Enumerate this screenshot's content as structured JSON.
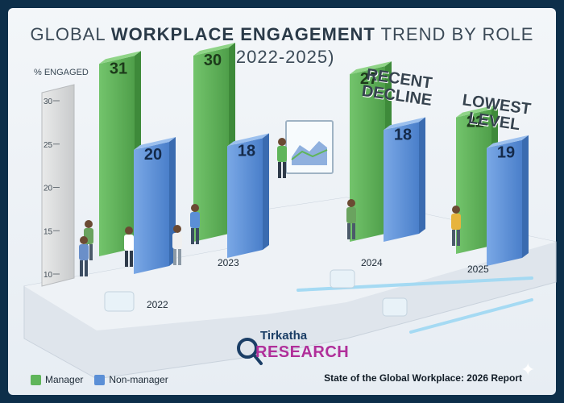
{
  "chart_data": {
    "type": "bar",
    "title_light_1": "GLOBAL ",
    "title_bold": "WORKPLACE ENGAGEMENT",
    "title_light_2": " TREND BY ROLE",
    "title_years": "(2022-2025)",
    "ylabel": "% ENGAGED",
    "yticks": [
      "30",
      "25",
      "20",
      "15",
      "10"
    ],
    "categories": [
      "2022",
      "2023",
      "2024",
      "2025"
    ],
    "series": [
      {
        "name": "Manager",
        "color": "#5fb55a",
        "values": [
          31,
          30,
          27,
          22
        ]
      },
      {
        "name": "Non-manager",
        "color": "#5b8fd6",
        "values": [
          20,
          18,
          18,
          19
        ]
      }
    ],
    "annotations": [
      {
        "text_line1": "RECENT",
        "text_line2": "DECLINE",
        "category": "2024"
      },
      {
        "text_line1": "LOWEST",
        "text_line2": "LEVEL",
        "category": "2025"
      }
    ]
  },
  "logo": {
    "top": "Tirkatha",
    "bottom": "RESEARCH"
  },
  "report": "State of the Global Workplace: 2026 Report",
  "colors": {
    "background": "#0d2f4a",
    "manager": "#5fb55a",
    "nonmanager": "#5b8fd6"
  }
}
